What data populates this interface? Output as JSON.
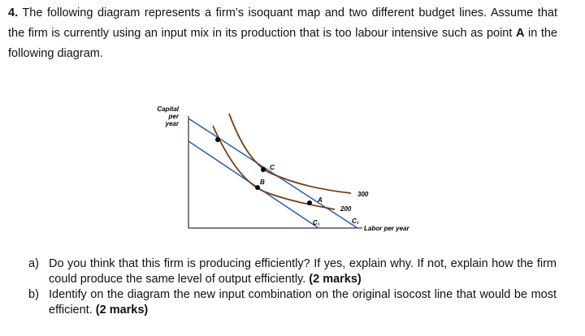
{
  "question": {
    "number": "4.",
    "text_before": "The following diagram represents a firm’s isoquant map and two different budget lines. Assume that the firm is currently using an input mix in its production that is too labour intensive such as point",
    "bold_point": "A",
    "text_after": "in the following diagram."
  },
  "diagram": {
    "y_axis_label": [
      "Capital",
      "per",
      "year"
    ],
    "x_axis_label": "Labor per year",
    "isoquant_labels": [
      "300",
      "200"
    ],
    "isocost_labels": [
      "C₁",
      "C₂"
    ],
    "point_labels": [
      "A",
      "B",
      "C"
    ]
  },
  "parts": [
    {
      "label": "a)",
      "text": "Do you think that this firm is producing efficiently? If yes, explain why. If not, explain how the firm could produce the same level of output efficiently.",
      "marks": "(2 marks)"
    },
    {
      "label": "b)",
      "text": "Identify on the diagram the new input combination on the original isocost line that would be most efficient.",
      "marks": "(2 marks)"
    }
  ]
}
